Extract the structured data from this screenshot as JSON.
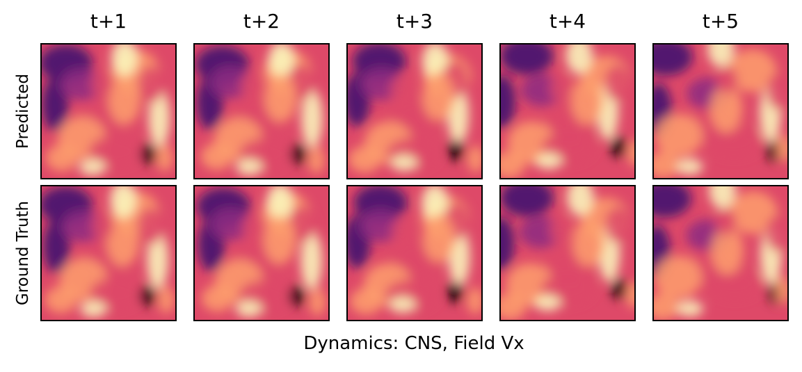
{
  "chart_data": {
    "type": "heatmap",
    "title": "",
    "columns": [
      "t+1",
      "t+2",
      "t+3",
      "t+4",
      "t+5"
    ],
    "rows": [
      "Predicted",
      "Ground Truth"
    ],
    "xlabel": "Dynamics: CNS, Field Vx",
    "colormap": "inferno",
    "colormap_stops": [
      "#000004",
      "#3b0f70",
      "#8c2981",
      "#de4968",
      "#fe9f6d",
      "#fcfdbf"
    ]
  }
}
